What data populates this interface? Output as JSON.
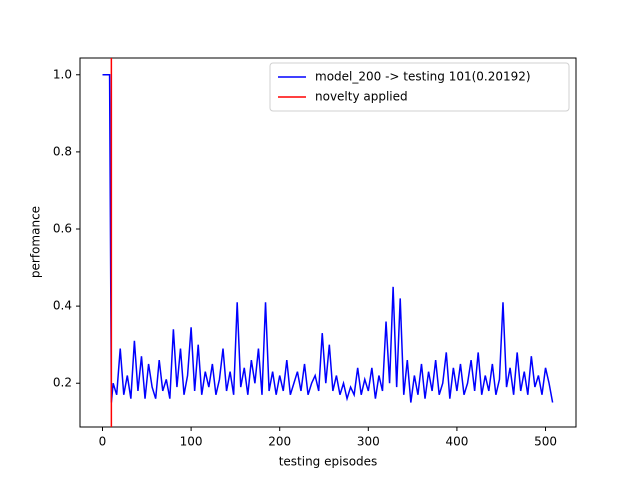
{
  "chart_data": {
    "type": "line",
    "xlabel": "testing episodes",
    "ylabel": "perfomance",
    "x": [
      0,
      2,
      4,
      6,
      8,
      10,
      12,
      16,
      20,
      24,
      28,
      32,
      36,
      40,
      44,
      48,
      52,
      56,
      60,
      64,
      68,
      72,
      76,
      80,
      84,
      88,
      92,
      96,
      100,
      104,
      108,
      112,
      116,
      120,
      124,
      128,
      132,
      136,
      140,
      144,
      148,
      152,
      156,
      160,
      164,
      168,
      172,
      176,
      180,
      184,
      188,
      192,
      196,
      200,
      204,
      208,
      212,
      216,
      220,
      224,
      228,
      232,
      236,
      240,
      244,
      248,
      252,
      256,
      260,
      264,
      268,
      272,
      276,
      280,
      284,
      288,
      292,
      296,
      300,
      304,
      308,
      312,
      316,
      320,
      324,
      328,
      332,
      336,
      340,
      344,
      348,
      352,
      356,
      360,
      364,
      368,
      372,
      376,
      380,
      384,
      388,
      392,
      396,
      400,
      404,
      408,
      412,
      416,
      420,
      424,
      428,
      432,
      436,
      440,
      444,
      448,
      452,
      456,
      460,
      464,
      468,
      472,
      476,
      480,
      484,
      488,
      492,
      496,
      500,
      504,
      508
    ],
    "series": [
      {
        "name": "model_200 -> testing 101(0.20192)",
        "color": "#0000ff",
        "values": [
          1.0,
          1.0,
          1.0,
          1.0,
          1.0,
          0.15,
          0.2,
          0.17,
          0.29,
          0.17,
          0.22,
          0.16,
          0.31,
          0.18,
          0.27,
          0.16,
          0.25,
          0.19,
          0.16,
          0.26,
          0.18,
          0.21,
          0.16,
          0.34,
          0.19,
          0.29,
          0.17,
          0.22,
          0.345,
          0.18,
          0.3,
          0.17,
          0.23,
          0.19,
          0.25,
          0.17,
          0.21,
          0.29,
          0.18,
          0.23,
          0.17,
          0.41,
          0.19,
          0.24,
          0.17,
          0.26,
          0.2,
          0.29,
          0.17,
          0.41,
          0.18,
          0.23,
          0.17,
          0.22,
          0.18,
          0.26,
          0.17,
          0.2,
          0.23,
          0.18,
          0.25,
          0.17,
          0.2,
          0.22,
          0.18,
          0.33,
          0.2,
          0.3,
          0.18,
          0.22,
          0.17,
          0.2,
          0.16,
          0.19,
          0.17,
          0.24,
          0.17,
          0.21,
          0.18,
          0.24,
          0.16,
          0.22,
          0.18,
          0.36,
          0.2,
          0.45,
          0.19,
          0.42,
          0.17,
          0.26,
          0.15,
          0.22,
          0.17,
          0.25,
          0.16,
          0.23,
          0.18,
          0.26,
          0.17,
          0.2,
          0.28,
          0.16,
          0.24,
          0.18,
          0.25,
          0.17,
          0.2,
          0.26,
          0.18,
          0.28,
          0.17,
          0.22,
          0.18,
          0.25,
          0.17,
          0.21,
          0.41,
          0.19,
          0.24,
          0.17,
          0.28,
          0.18,
          0.23,
          0.17,
          0.27,
          0.19,
          0.22,
          0.17,
          0.24,
          0.2,
          0.15
        ]
      }
    ],
    "vlines": [
      {
        "x": 10,
        "name": "novelty applied",
        "color": "#ff0000"
      }
    ],
    "xlim": [
      -25.4,
      534.4
    ],
    "ylim": [
      0.0865,
      1.0435
    ],
    "xticks": [
      0,
      100,
      200,
      300,
      400,
      500
    ],
    "yticks": [
      0.2,
      0.4,
      0.6,
      0.8,
      {
        "value": 1,
        "label": "1.0"
      }
    ],
    "legend": "upper right"
  }
}
